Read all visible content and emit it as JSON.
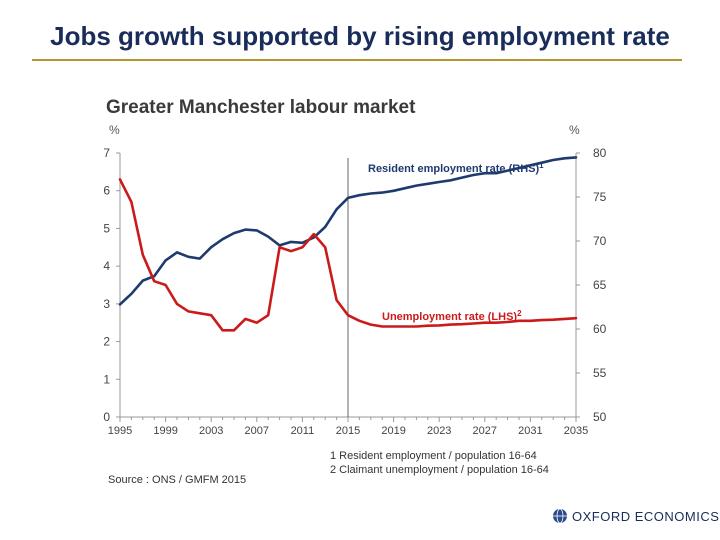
{
  "slide_title": "Jobs growth supported by rising employment rate",
  "brand": "OXFORD ECONOMICS",
  "chart_data": {
    "type": "line",
    "title": "Greater Manchester labour market",
    "left_axis_unit": "%",
    "right_axis_unit": "%",
    "left_ylim": [
      0,
      7
    ],
    "right_ylim": [
      50,
      80
    ],
    "left_ticks": [
      "0",
      "1",
      "2",
      "3",
      "4",
      "5",
      "6",
      "7"
    ],
    "right_ticks": [
      "50",
      "55",
      "60",
      "65",
      "70",
      "75",
      "80"
    ],
    "x_range": [
      1995,
      2035
    ],
    "x_ticks": [
      "1995",
      "1999",
      "2003",
      "2007",
      "2011",
      "2015",
      "2019",
      "2023",
      "2027",
      "2031",
      "2035"
    ],
    "forecast_divider_x": 2015,
    "series": [
      {
        "name": "Resident employment rate (RHS)",
        "name_superscript": "1",
        "axis": "right",
        "color": "#1f3a6e",
        "x": [
          1995,
          1996,
          1997,
          1998,
          1999,
          2000,
          2001,
          2002,
          2003,
          2004,
          2005,
          2006,
          2007,
          2008,
          2009,
          2010,
          2011,
          2012,
          2013,
          2014,
          2015,
          2016,
          2017,
          2018,
          2019,
          2020,
          2021,
          2022,
          2023,
          2024,
          2025,
          2026,
          2027,
          2028,
          2029,
          2030,
          2031,
          2032,
          2033,
          2034,
          2035
        ],
        "y": [
          62.8,
          64.0,
          65.5,
          66.0,
          67.8,
          68.7,
          68.2,
          68.0,
          69.3,
          70.2,
          70.9,
          71.3,
          71.2,
          70.5,
          69.5,
          69.9,
          69.8,
          70.4,
          71.6,
          73.6,
          74.9,
          75.2,
          75.4,
          75.5,
          75.7,
          76.0,
          76.3,
          76.5,
          76.7,
          76.9,
          77.2,
          77.5,
          77.7,
          77.7,
          78.0,
          78.3,
          78.6,
          78.9,
          79.2,
          79.4,
          79.5
        ]
      },
      {
        "name": "Unemployment rate (LHS)",
        "name_superscript": "2",
        "axis": "left",
        "color": "#cc1a1a",
        "x": [
          1995,
          1996,
          1997,
          1998,
          1999,
          2000,
          2001,
          2002,
          2003,
          2004,
          2005,
          2006,
          2007,
          2008,
          2009,
          2010,
          2011,
          2012,
          2013,
          2014,
          2015,
          2016,
          2017,
          2018,
          2019,
          2020,
          2021,
          2022,
          2023,
          2024,
          2025,
          2026,
          2027,
          2028,
          2029,
          2030,
          2031,
          2032,
          2033,
          2034,
          2035
        ],
        "y": [
          6.3,
          5.7,
          4.3,
          3.6,
          3.5,
          3.0,
          2.8,
          2.75,
          2.7,
          2.3,
          2.3,
          2.6,
          2.5,
          2.7,
          4.5,
          4.4,
          4.5,
          4.85,
          4.5,
          3.1,
          2.7,
          2.55,
          2.45,
          2.4,
          2.4,
          2.4,
          2.4,
          2.42,
          2.43,
          2.45,
          2.46,
          2.48,
          2.5,
          2.5,
          2.52,
          2.55,
          2.55,
          2.57,
          2.58,
          2.6,
          2.62
        ]
      }
    ],
    "footnotes": [
      "1 Resident employment / population 16-64",
      "2 Claimant unemployment / population 16-64"
    ],
    "source": "Source : ONS / GMFM 2015"
  }
}
